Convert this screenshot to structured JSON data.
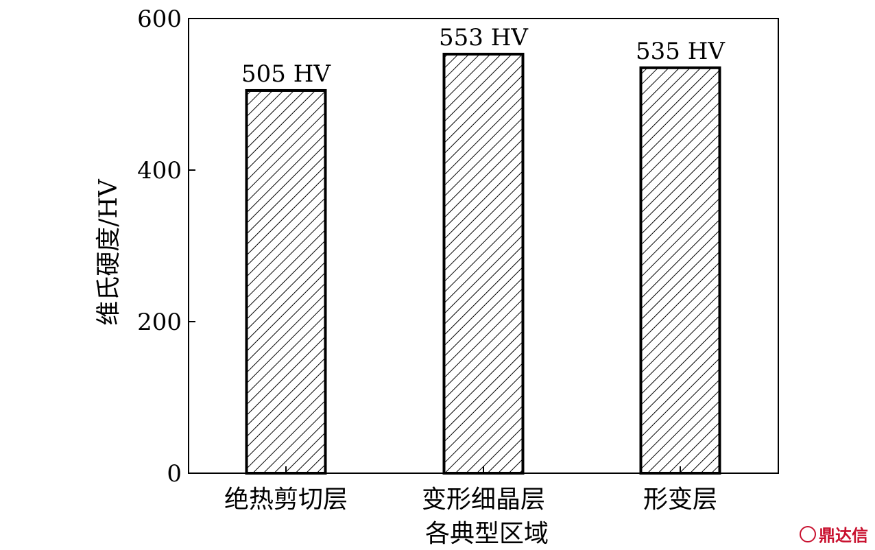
{
  "chart_data": {
    "type": "bar",
    "categories": [
      "绝热剪切层",
      "变形细晶层",
      "形变层"
    ],
    "values": [
      505,
      553,
      535
    ],
    "data_labels": [
      "505 HV",
      "553 HV",
      "535 HV"
    ],
    "xlabel": "各典型区域",
    "ylabel": "维氏硬度/HV",
    "ylim": [
      0,
      600
    ],
    "yticks": [
      0,
      200,
      400,
      600
    ],
    "grid": false,
    "bar_fill": "diagonal-hatch",
    "colors": {
      "bar_edge": "#000000",
      "hatch": "#000000",
      "background": "#ffffff"
    }
  },
  "watermark": {
    "text": "鼎达信",
    "color": "#c8102e",
    "icon": "logo-circle-icon"
  }
}
